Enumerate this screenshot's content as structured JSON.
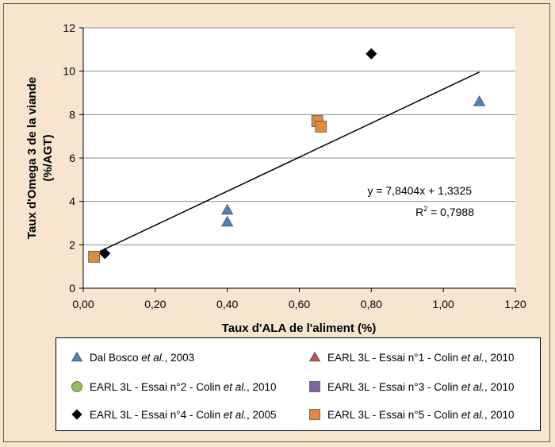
{
  "chart_data": {
    "type": "scatter",
    "xlabel": "Taux d'ALA de l'aliment (%)",
    "ylabel_lines": [
      "Taux d'Omega 3 de la viande",
      "(%/AGT)"
    ],
    "xlim": [
      0,
      1.2
    ],
    "ylim": [
      0,
      12
    ],
    "x_ticks": [
      "0,00",
      "0,20",
      "0,40",
      "0,60",
      "0,80",
      "1,00",
      "1,20"
    ],
    "x_tick_values": [
      0,
      0.2,
      0.4,
      0.6,
      0.8,
      1.0,
      1.2
    ],
    "y_ticks": [
      "0",
      "2",
      "4",
      "6",
      "8",
      "10",
      "12"
    ],
    "y_tick_values": [
      0,
      2,
      4,
      6,
      8,
      10,
      12
    ],
    "grid": "horizontal",
    "legend_position": "bottom",
    "series": [
      {
        "name": "Dal Bosco et al., 2003",
        "name_parts": [
          "Dal Bosco ",
          "et al.",
          ", 2003"
        ],
        "marker": "triangle",
        "color": "#4f81bd",
        "points": [
          [
            0.4,
            3.6
          ],
          [
            0.4,
            3.05
          ],
          [
            1.1,
            8.6
          ]
        ]
      },
      {
        "name": "EARL 3L - Essai n°1 - Colin et al., 2010",
        "name_parts": [
          "EARL 3L - Essai n°1 - Colin ",
          "et al.",
          ", 2010"
        ],
        "marker": "triangle",
        "color": "#c0504d",
        "points": []
      },
      {
        "name": "EARL 3L - Essai n°2 - Colin et al., 2010",
        "name_parts": [
          "EARL 3L - Essai n°2 - Colin ",
          "et al.",
          ", 2010"
        ],
        "marker": "circle",
        "color": "#9bbb59",
        "points": []
      },
      {
        "name": "EARL 3L - Essai n°3 - Colin et al., 2010",
        "name_parts": [
          "EARL 3L - Essai n°3 - Colin ",
          "et al.",
          ", 2010"
        ],
        "marker": "square",
        "color": "#8064a2",
        "points": []
      },
      {
        "name": "EARL 3L - Essai n°4 - Colin et al., 2005",
        "name_parts": [
          "EARL 3L - Essai n°4 - Colin ",
          "et al.",
          ", 2005"
        ],
        "marker": "diamond",
        "color": "#000000",
        "points": [
          [
            0.06,
            1.6
          ],
          [
            0.8,
            10.8
          ]
        ]
      },
      {
        "name": "EARL 3L - Essai n°5 - Colin et al., 2010",
        "name_parts": [
          "EARL 3L - Essai n°5 - Colin ",
          "et al.",
          ", 2010"
        ],
        "marker": "square",
        "color": "#e08c3c",
        "points": [
          [
            0.03,
            1.45
          ],
          [
            0.65,
            7.7
          ],
          [
            0.66,
            7.45
          ]
        ]
      }
    ],
    "trendline": {
      "slope": 7.8404,
      "intercept": 1.3325,
      "x_range": [
        0.03,
        1.1
      ],
      "equation": "y = 7,8404x + 1,3325",
      "r2_prefix": "R",
      "r2_sup": "2",
      "r2_value": " = 0,7988"
    }
  }
}
